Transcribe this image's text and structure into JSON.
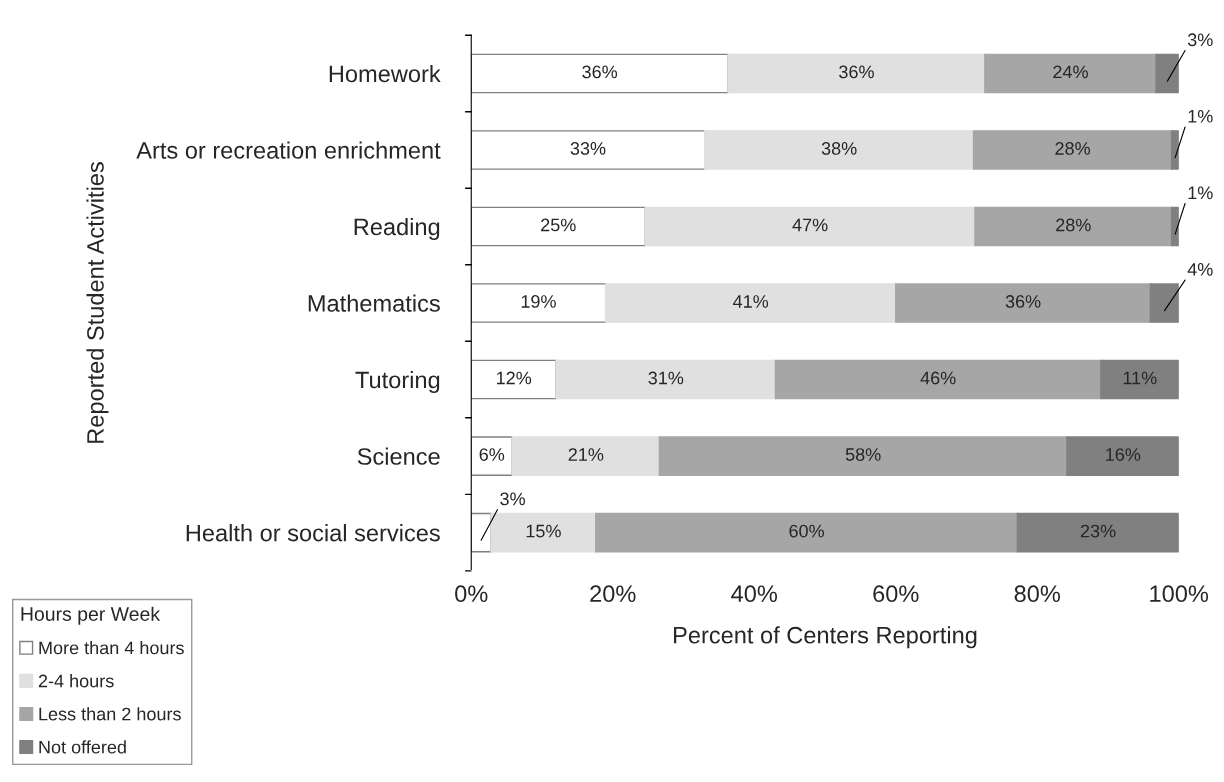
{
  "chart_data": {
    "type": "bar",
    "orientation": "horizontal",
    "stacked": true,
    "categories": [
      "Homework",
      "Arts or recreation enrichment",
      "Reading",
      "Mathematics",
      "Tutoring",
      "Science",
      "Health or social services"
    ],
    "xlabel": "Percent of Centers Reporting",
    "ylabel": "Reported Student Activities",
    "legend_title": "Hours per Week",
    "xlim": [
      0,
      100
    ],
    "xticks": [
      {
        "value": 0,
        "label": "0%"
      },
      {
        "value": 20,
        "label": "20%"
      },
      {
        "value": 40,
        "label": "40%"
      },
      {
        "value": 60,
        "label": "60%"
      },
      {
        "value": 80,
        "label": "80%"
      },
      {
        "value": 100,
        "label": "100%"
      }
    ],
    "series": [
      {
        "name": "More than 4 hours",
        "color": "#ffffff",
        "values": [
          36.3,
          33,
          24.6,
          19,
          12,
          5.8,
          2.8
        ],
        "value_labels": [
          "36%",
          "33%",
          "25%",
          "19%",
          "12%",
          "6%",
          "3%"
        ]
      },
      {
        "name": "2-4 hours",
        "color": "#e0e0e0",
        "values": [
          36.3,
          38,
          46.6,
          41,
          31,
          20.8,
          14.8
        ],
        "value_labels": [
          "36%",
          "38%",
          "47%",
          "41%",
          "31%",
          "21%",
          "15%"
        ]
      },
      {
        "name": "Less than 2 hours",
        "color": "#a6a6a6",
        "values": [
          24.2,
          28,
          27.8,
          36,
          46,
          57.6,
          59.6
        ],
        "value_labels": [
          "24%",
          "28%",
          "28%",
          "36%",
          "46%",
          "58%",
          "60%"
        ]
      },
      {
        "name": "Not offered",
        "color": "#808080",
        "values": [
          3.2,
          1,
          1,
          4,
          11,
          15.8,
          22.8
        ],
        "value_labels": [
          "3%",
          "1%",
          "1%",
          "4%",
          "11%",
          "16%",
          "23%"
        ]
      }
    ],
    "legend": "bottom left",
    "grid": false
  }
}
